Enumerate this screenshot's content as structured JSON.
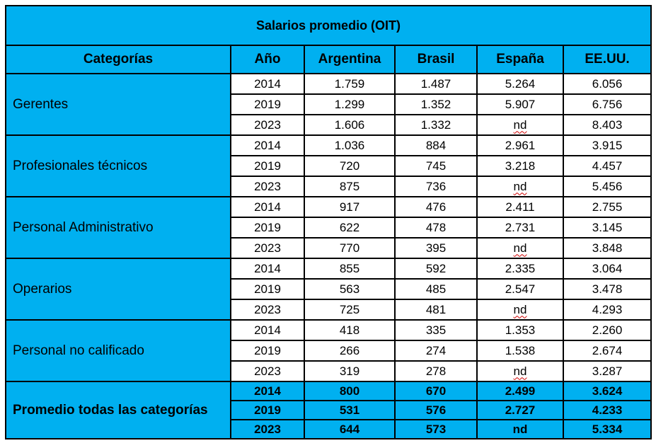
{
  "title": "Salarios promedio (OIT)",
  "headers": [
    "Categorías",
    "Año",
    "Argentina",
    "Brasil",
    "España",
    "EE.UU."
  ],
  "groups": [
    {
      "category": "Gerentes",
      "rows": [
        {
          "year": "2014",
          "argentina": "1.759",
          "brasil": "1.487",
          "espana": "5.264",
          "eeuu": "6.056"
        },
        {
          "year": "2019",
          "argentina": "1.299",
          "brasil": "1.352",
          "espana": "5.907",
          "eeuu": "6.756"
        },
        {
          "year": "2023",
          "argentina": "1.606",
          "brasil": "1.332",
          "espana": "nd",
          "eeuu": "8.403"
        }
      ]
    },
    {
      "category": "Profesionales técnicos",
      "rows": [
        {
          "year": "2014",
          "argentina": "1.036",
          "brasil": "884",
          "espana": "2.961",
          "eeuu": "3.915"
        },
        {
          "year": "2019",
          "argentina": "720",
          "brasil": "745",
          "espana": "3.218",
          "eeuu": "4.457"
        },
        {
          "year": "2023",
          "argentina": "875",
          "brasil": "736",
          "espana": "nd",
          "eeuu": "5.456"
        }
      ]
    },
    {
      "category": "Personal Administrativo",
      "rows": [
        {
          "year": "2014",
          "argentina": "917",
          "brasil": "476",
          "espana": "2.411",
          "eeuu": "2.755"
        },
        {
          "year": "2019",
          "argentina": "622",
          "brasil": "478",
          "espana": "2.731",
          "eeuu": "3.145"
        },
        {
          "year": "2023",
          "argentina": "770",
          "brasil": "395",
          "espana": "nd",
          "eeuu": "3.848"
        }
      ]
    },
    {
      "category": "Operarios",
      "rows": [
        {
          "year": "2014",
          "argentina": "855",
          "brasil": "592",
          "espana": "2.335",
          "eeuu": "3.064"
        },
        {
          "year": "2019",
          "argentina": "563",
          "brasil": "485",
          "espana": "2.547",
          "eeuu": "3.478"
        },
        {
          "year": "2023",
          "argentina": "725",
          "brasil": "481",
          "espana": "nd",
          "eeuu": "4.293"
        }
      ]
    },
    {
      "category": "Personal no calificado",
      "rows": [
        {
          "year": "2014",
          "argentina": "418",
          "brasil": "335",
          "espana": "1.353",
          "eeuu": "2.260"
        },
        {
          "year": "2019",
          "argentina": "266",
          "brasil": "274",
          "espana": "1.538",
          "eeuu": "2.674"
        },
        {
          "year": "2023",
          "argentina": "319",
          "brasil": "278",
          "espana": "nd",
          "eeuu": "3.287"
        }
      ]
    }
  ],
  "average": {
    "category": "Promedio todas las categorías",
    "rows": [
      {
        "year": "2014",
        "argentina": "800",
        "brasil": "670",
        "espana": "2.499",
        "eeuu": "3.624"
      },
      {
        "year": "2019",
        "argentina": "531",
        "brasil": "576",
        "espana": "2.727",
        "eeuu": "4.233"
      },
      {
        "year": "2023",
        "argentina": "644",
        "brasil": "573",
        "espana": "nd",
        "eeuu": "5.334"
      }
    ]
  }
}
